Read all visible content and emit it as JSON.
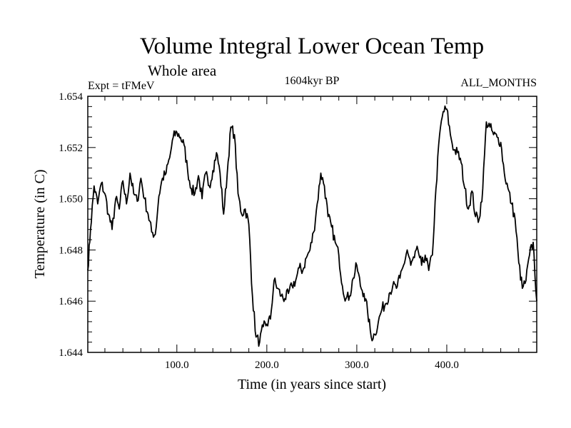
{
  "chart_data": {
    "type": "line",
    "title": "Volume Integral Lower Ocean Temp",
    "subtitle": "Whole area",
    "left_label": "Expt = tFMeV",
    "center_label": "1604kyr BP",
    "right_label": "ALL_MONTHS",
    "xlabel": "Time (in years since start)",
    "ylabel": "Temperature (in C)",
    "xlim": [
      1,
      500
    ],
    "ylim": [
      1.644,
      1.654
    ],
    "grid": false,
    "x_ticks": [
      100,
      200,
      300,
      400
    ],
    "x_tick_labels": [
      "100.0",
      "200.0",
      "300.0",
      "400.0"
    ],
    "y_ticks": [
      1.644,
      1.646,
      1.648,
      1.65,
      1.652,
      1.654
    ],
    "y_tick_labels": [
      "1.644",
      "1.646",
      "1.648",
      "1.650",
      "1.652",
      "1.654"
    ],
    "series": [
      {
        "name": "Volume Integral Lower Ocean Temp",
        "color": "#000000",
        "points": [
          [
            1,
            1.6472
          ],
          [
            4,
            1.6488
          ],
          [
            8,
            1.6505
          ],
          [
            12,
            1.6498
          ],
          [
            16,
            1.6506
          ],
          [
            20,
            1.6502
          ],
          [
            24,
            1.6494
          ],
          [
            28,
            1.6488
          ],
          [
            32,
            1.65
          ],
          [
            36,
            1.6496
          ],
          [
            40,
            1.6507
          ],
          [
            44,
            1.6498
          ],
          [
            48,
            1.651
          ],
          [
            52,
            1.6502
          ],
          [
            56,
            1.6499
          ],
          [
            60,
            1.6508
          ],
          [
            64,
            1.65
          ],
          [
            68,
            1.6494
          ],
          [
            72,
            1.6487
          ],
          [
            76,
            1.6486
          ],
          [
            80,
            1.6501
          ],
          [
            84,
            1.6508
          ],
          [
            88,
            1.651
          ],
          [
            92,
            1.6516
          ],
          [
            96,
            1.6524
          ],
          [
            100,
            1.6526
          ],
          [
            104,
            1.6524
          ],
          [
            108,
            1.6521
          ],
          [
            112,
            1.6511
          ],
          [
            116,
            1.6504
          ],
          [
            120,
            1.6502
          ],
          [
            124,
            1.6509
          ],
          [
            128,
            1.65
          ],
          [
            132,
            1.651
          ],
          [
            136,
            1.6505
          ],
          [
            140,
            1.6511
          ],
          [
            144,
            1.6518
          ],
          [
            148,
            1.651
          ],
          [
            152,
            1.6494
          ],
          [
            156,
            1.651
          ],
          [
            160,
            1.6528
          ],
          [
            164,
            1.6525
          ],
          [
            168,
            1.6502
          ],
          [
            172,
            1.6494
          ],
          [
            176,
            1.6496
          ],
          [
            180,
            1.649
          ],
          [
            184,
            1.6462
          ],
          [
            188,
            1.6446
          ],
          [
            192,
            1.6444
          ],
          [
            196,
            1.645
          ],
          [
            200,
            1.6451
          ],
          [
            204,
            1.6453
          ],
          [
            208,
            1.6468
          ],
          [
            212,
            1.6465
          ],
          [
            216,
            1.6462
          ],
          [
            220,
            1.6461
          ],
          [
            224,
            1.6463
          ],
          [
            228,
            1.6466
          ],
          [
            232,
            1.6468
          ],
          [
            236,
            1.6473
          ],
          [
            240,
            1.6472
          ],
          [
            244,
            1.6477
          ],
          [
            248,
            1.648
          ],
          [
            252,
            1.6487
          ],
          [
            256,
            1.6498
          ],
          [
            260,
            1.651
          ],
          [
            264,
            1.6505
          ],
          [
            268,
            1.6493
          ],
          [
            272,
            1.6489
          ],
          [
            276,
            1.6483
          ],
          [
            280,
            1.6478
          ],
          [
            284,
            1.6466
          ],
          [
            288,
            1.6461
          ],
          [
            292,
            1.6462
          ],
          [
            296,
            1.6469
          ],
          [
            300,
            1.6474
          ],
          [
            304,
            1.6466
          ],
          [
            308,
            1.6463
          ],
          [
            312,
            1.6456
          ],
          [
            316,
            1.6446
          ],
          [
            320,
            1.6447
          ],
          [
            324,
            1.6452
          ],
          [
            328,
            1.6457
          ],
          [
            332,
            1.6459
          ],
          [
            336,
            1.6463
          ],
          [
            340,
            1.6466
          ],
          [
            344,
            1.6465
          ],
          [
            348,
            1.6469
          ],
          [
            352,
            1.6474
          ],
          [
            356,
            1.648
          ],
          [
            360,
            1.6474
          ],
          [
            364,
            1.6477
          ],
          [
            368,
            1.648
          ],
          [
            372,
            1.6474
          ],
          [
            376,
            1.6478
          ],
          [
            380,
            1.6472
          ],
          [
            384,
            1.6478
          ],
          [
            388,
            1.6504
          ],
          [
            392,
            1.6525
          ],
          [
            396,
            1.6534
          ],
          [
            400,
            1.6535
          ],
          [
            404,
            1.6525
          ],
          [
            408,
            1.6519
          ],
          [
            412,
            1.6518
          ],
          [
            416,
            1.6514
          ],
          [
            420,
            1.6504
          ],
          [
            424,
            1.6496
          ],
          [
            428,
            1.6503
          ],
          [
            432,
            1.6493
          ],
          [
            436,
            1.6492
          ],
          [
            440,
            1.6504
          ],
          [
            444,
            1.653
          ],
          [
            448,
            1.6528
          ],
          [
            452,
            1.6525
          ],
          [
            456,
            1.6524
          ],
          [
            460,
            1.6522
          ],
          [
            464,
            1.651
          ],
          [
            468,
            1.6504
          ],
          [
            472,
            1.6498
          ],
          [
            476,
            1.6492
          ],
          [
            480,
            1.6475
          ],
          [
            484,
            1.6465
          ],
          [
            488,
            1.6468
          ],
          [
            492,
            1.6478
          ],
          [
            496,
            1.6483
          ],
          [
            500,
            1.646
          ]
        ]
      }
    ]
  }
}
